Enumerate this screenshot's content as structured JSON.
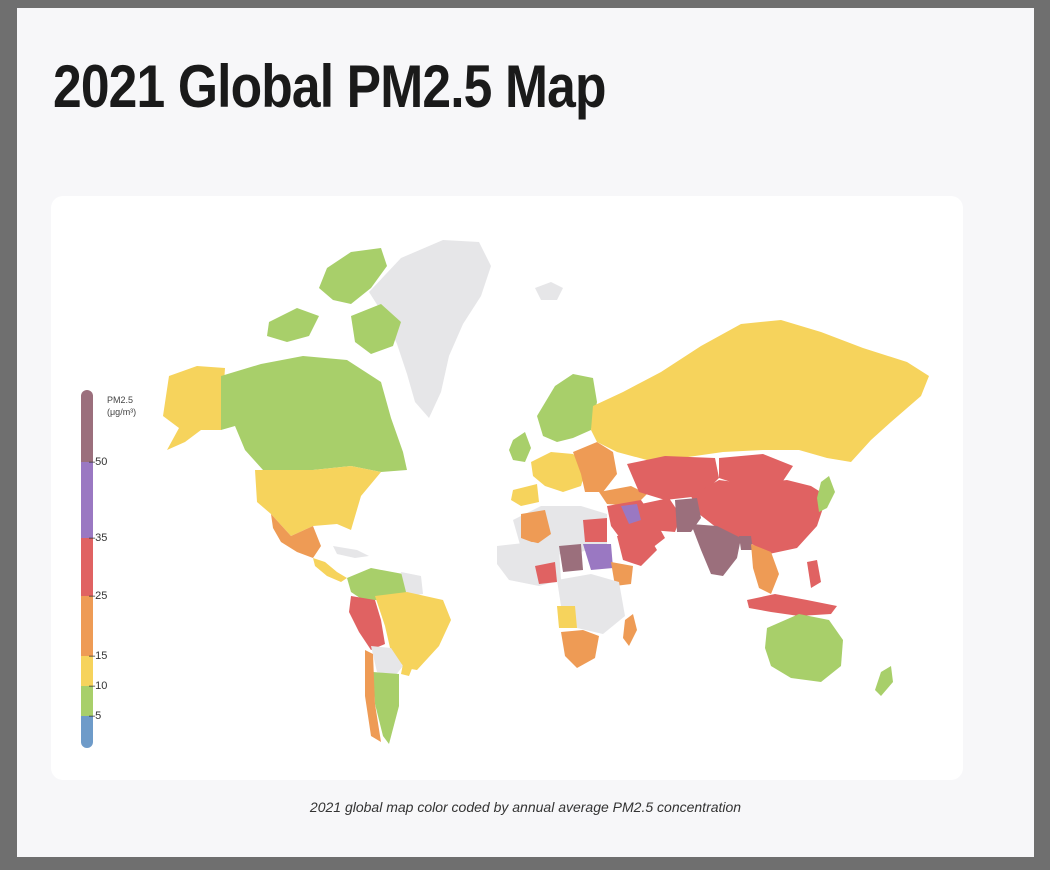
{
  "title": "2021 Global PM2.5 Map",
  "caption": "2021 global map color coded by annual average PM2.5 concentration",
  "legend": {
    "title_line1": "PM2.5",
    "title_line2": "(μg/m³)",
    "ticks": [
      "50",
      "35",
      "25",
      "15",
      "10",
      "5"
    ]
  },
  "colors": {
    "no_data": "#e6e6e8",
    "band_0_5": "#6e9bc9",
    "band_5_10": "#a8cf6a",
    "band_10_15": "#f6d35c",
    "band_15_25": "#ee9b55",
    "band_25_35": "#e06262",
    "band_35_50": "#9a78c2",
    "band_50_plus": "#9b6f7c"
  }
}
